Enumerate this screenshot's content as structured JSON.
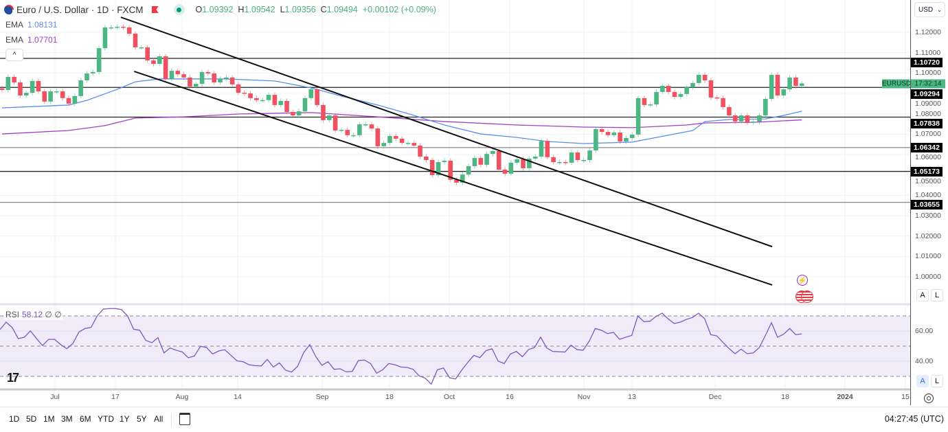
{
  "header": {
    "title": "Euro / U.S. Dollar · 1D · FXCM",
    "ohlc": {
      "o_label": "O",
      "o": "1.09392",
      "h_label": "H",
      "h": "1.09542",
      "l_label": "L",
      "l": "1.09356",
      "c_label": "C",
      "c": "1.09494",
      "change": "+0.00102 (+0.09%)"
    },
    "ema_fast": {
      "label": "EMA",
      "value": "1.08131",
      "color": "#5b8def"
    },
    "ema_slow": {
      "label": "EMA",
      "value": "1.07701",
      "color": "#a23fc4"
    },
    "collapse_label": "^"
  },
  "price_axis": {
    "currency": "USD",
    "currency_caret": "⌄",
    "ticks": [
      "1.12000",
      "1.11000",
      "1.10000",
      "1.09000",
      "1.08000",
      "1.07000",
      "1.06000",
      "1.05000",
      "1.04000",
      "1.03000",
      "1.02000",
      "1.01000",
      "1.00000"
    ],
    "levels": [
      "1.10720",
      "1.09294",
      "1.07838",
      "1.06342",
      "1.05173",
      "1.03655"
    ],
    "symbol_tag": "EURUSD",
    "countdown": "17:32:14",
    "auto_label": "A",
    "log_label": "L"
  },
  "rsi": {
    "label": "RSI",
    "value": "58.12",
    "extra1": "∅",
    "extra2": "∅",
    "ticks": [
      "60.00",
      "40.00"
    ],
    "upper": 70,
    "lower": 30,
    "middle": 50,
    "color": "#7e57c2",
    "values": [
      60.9,
      65.9,
      62.4,
      55,
      55.9,
      60.1,
      55.1,
      50.4,
      54.5,
      54.5,
      51,
      48.3,
      51.8,
      59.4,
      61.7,
      62.4,
      70,
      74.5,
      74.9,
      74.9,
      74.2,
      70,
      61.2,
      60.5,
      53.8,
      52.3,
      55.6,
      45.5,
      48.8,
      47.3,
      46.2,
      42.3,
      43.5,
      49.9,
      49.1,
      44.8,
      46.8,
      47.6,
      44,
      40.3,
      39.7,
      37.7,
      37.1,
      36.9,
      41.2,
      36.2,
      38.9,
      34.1,
      32.9,
      36.7,
      45.8,
      51,
      43,
      37.3,
      39.7,
      34.7,
      35,
      33,
      33.3,
      40.5,
      40.8,
      38.5,
      32.1,
      34.4,
      38.5,
      37.7,
      36.2,
      35.9,
      34.7,
      30.3,
      28.8,
      24.9,
      34.4,
      35.5,
      29.1,
      28.3,
      34.1,
      39.2,
      43.9,
      42.4,
      47,
      48.3,
      40.1,
      38.5,
      44.7,
      46.5,
      43,
      47.7,
      49.1,
      56,
      48.8,
      46.5,
      46.3,
      46.1,
      50.6,
      47.7,
      47.3,
      53.3,
      61.7,
      60.5,
      58.3,
      59.1,
      54.5,
      55.9,
      57.1,
      70,
      66.2,
      66.5,
      69.7,
      71.8,
      68,
      65,
      65.9,
      67.7,
      69,
      71.8,
      68.2,
      57.6,
      56.8,
      52.6,
      48.5,
      45,
      48,
      45,
      45.5,
      49.1,
      57.1,
      65.5,
      55.9,
      57.9,
      61.7,
      57.6,
      58.12
    ]
  },
  "chart_data": {
    "type": "candlestick",
    "symbol": "EURUSD",
    "interval": "1D",
    "ylim": [
      0.995,
      1.128
    ],
    "up_color": "#4cb782",
    "down_color": "#ef5160",
    "closes": [
      1.0917,
      1.0981,
      1.0954,
      1.089,
      1.0903,
      1.0961,
      1.091,
      1.086,
      1.091,
      1.091,
      1.0877,
      1.085,
      1.0887,
      1.0964,
      1.0998,
      1.1005,
      1.1122,
      1.1224,
      1.1224,
      1.1227,
      1.1224,
      1.1193,
      1.1126,
      1.1126,
      1.1062,
      1.1045,
      1.1082,
      1.0971,
      1.1011,
      1.0994,
      1.0978,
      1.0934,
      1.0947,
      1.1005,
      1.0998,
      1.0954,
      1.0971,
      1.0978,
      1.0944,
      1.0903,
      1.09,
      1.0877,
      1.0867,
      1.0867,
      1.0893,
      1.0843,
      1.0863,
      1.0809,
      1.0792,
      1.0812,
      1.0877,
      1.092,
      1.0843,
      1.0769,
      1.0792,
      1.0718,
      1.0721,
      1.0695,
      1.0695,
      1.0748,
      1.0748,
      1.0728,
      1.0641,
      1.0657,
      1.0691,
      1.0678,
      1.0657,
      1.0657,
      1.0644,
      1.059,
      1.0573,
      1.0499,
      1.0563,
      1.057,
      1.0476,
      1.0462,
      1.0502,
      1.0543,
      1.0583,
      1.055,
      1.0603,
      1.0617,
      1.0526,
      1.0506,
      1.056,
      1.0577,
      1.0533,
      1.058,
      1.059,
      1.0667,
      1.0587,
      1.0563,
      1.0563,
      1.056,
      1.061,
      1.0573,
      1.0573,
      1.062,
      1.0725,
      1.0711,
      1.0695,
      1.0708,
      1.0664,
      1.0681,
      1.0698,
      1.0877,
      1.0843,
      1.0846,
      1.0907,
      1.0937,
      1.0907,
      1.0883,
      1.0897,
      1.093,
      1.0951,
      1.0991,
      1.0964,
      1.088,
      1.0877,
      1.0833,
      1.0792,
      1.0762,
      1.0792,
      1.0758,
      1.0762,
      1.0792,
      1.0873,
      1.0991,
      1.089,
      1.092,
      1.0978,
      1.0937,
      1.0949
    ],
    "ema_fast_points": [
      [
        0,
        1.0829
      ],
      [
        11,
        1.0843
      ],
      [
        14,
        1.0866
      ],
      [
        19,
        1.092
      ],
      [
        22,
        1.0957
      ],
      [
        26,
        1.0971
      ],
      [
        37,
        1.0971
      ],
      [
        45,
        1.0961
      ],
      [
        51,
        1.0927
      ],
      [
        56,
        1.0887
      ],
      [
        62,
        1.0843
      ],
      [
        68,
        1.0792
      ],
      [
        73,
        1.0745
      ],
      [
        79,
        1.0701
      ],
      [
        85,
        1.0684
      ],
      [
        90,
        1.0664
      ],
      [
        96,
        1.0654
      ],
      [
        104,
        1.0661
      ],
      [
        108,
        1.0684
      ],
      [
        114,
        1.0718
      ],
      [
        116,
        1.0762
      ],
      [
        120,
        1.0772
      ],
      [
        126,
        1.0775
      ],
      [
        129,
        1.0792
      ],
      [
        132,
        1.0813
      ]
    ],
    "ema_slow_points": [
      [
        0,
        1.0701
      ],
      [
        11,
        1.0718
      ],
      [
        17,
        1.0742
      ],
      [
        22,
        1.0779
      ],
      [
        30,
        1.0785
      ],
      [
        39,
        1.0799
      ],
      [
        51,
        1.0806
      ],
      [
        62,
        1.0785
      ],
      [
        73,
        1.0762
      ],
      [
        85,
        1.0745
      ],
      [
        96,
        1.0735
      ],
      [
        104,
        1.0732
      ],
      [
        113,
        1.0745
      ],
      [
        116,
        1.0755
      ],
      [
        124,
        1.0758
      ],
      [
        132,
        1.077
      ]
    ],
    "trend_lines": [
      {
        "from": [
          19.6,
          1.1274
        ],
        "to": [
          127.1,
          1.0148
        ]
      },
      {
        "from": [
          21.8,
          1.1008
        ],
        "to": [
          127.1,
          0.996
        ]
      }
    ],
    "level_lines": [
      1.1072,
      1.09294,
      1.07838,
      1.06342,
      1.05173,
      1.03655
    ],
    "x_tick_labels": [
      "Jul",
      "17",
      "Aug",
      "14",
      "Sep",
      "18",
      "Oct",
      "16",
      "Nov",
      "13",
      "Dec",
      "18",
      "2024",
      "15"
    ]
  },
  "toolbar": {
    "ranges": [
      "1D",
      "5D",
      "1M",
      "3M",
      "6M",
      "YTD",
      "1Y",
      "5Y",
      "All"
    ],
    "clock": "04:27:45 (UTC)"
  }
}
